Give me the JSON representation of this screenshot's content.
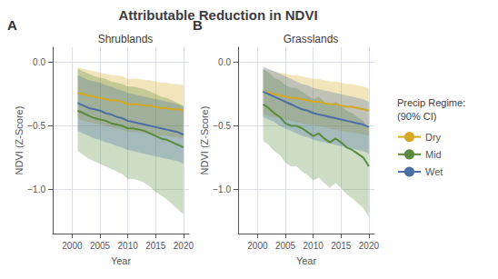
{
  "title": "Attributable Reduction in NDVI",
  "legend_title": "Precip Regime:\n(90% CI)",
  "chart_data": [
    {
      "type": "line",
      "title": "Shrublands",
      "annotations": [
        {
          "text": "A"
        }
      ],
      "xlabel": "Year",
      "ylabel": "NDVI (Z-Score)",
      "x": [
        2001,
        2002,
        2003,
        2004,
        2005,
        2006,
        2007,
        2008,
        2009,
        2010,
        2011,
        2012,
        2013,
        2014,
        2015,
        2016,
        2017,
        2018,
        2019,
        2020
      ],
      "xlim": [
        1996.5,
        2021
      ],
      "xticks": [
        2000,
        2005,
        2010,
        2015,
        2020
      ],
      "ylim": [
        -1.35,
        0.12
      ],
      "yticks": [
        {
          "value": 0.0,
          "label": "0.0"
        },
        {
          "value": -0.5,
          "label": "−0.5"
        },
        {
          "value": -1.0,
          "label": "−1.0"
        }
      ],
      "grid": true,
      "legend": "right",
      "series": [
        {
          "name": "Dry",
          "color": "#D4A820",
          "values": [
            -0.24,
            -0.25,
            -0.26,
            -0.27,
            -0.28,
            -0.29,
            -0.3,
            -0.3,
            -0.31,
            -0.33,
            -0.33,
            -0.33,
            -0.34,
            -0.34,
            -0.35,
            -0.36,
            -0.36,
            -0.37,
            -0.37,
            -0.38
          ],
          "lo": [
            -0.04,
            -0.05,
            -0.06,
            -0.07,
            -0.08,
            -0.09,
            -0.1,
            -0.1,
            -0.11,
            -0.13,
            -0.13,
            -0.13,
            -0.14,
            -0.14,
            -0.15,
            -0.16,
            -0.16,
            -0.17,
            -0.17,
            -0.18
          ],
          "hi": [
            -0.44,
            -0.46,
            -0.47,
            -0.48,
            -0.49,
            -0.5,
            -0.51,
            -0.52,
            -0.53,
            -0.55,
            -0.55,
            -0.55,
            -0.56,
            -0.56,
            -0.57,
            -0.58,
            -0.58,
            -0.59,
            -0.59,
            -0.6
          ]
        },
        {
          "name": "Mid",
          "color": "#5A8A3C",
          "values": [
            -0.38,
            -0.4,
            -0.42,
            -0.44,
            -0.45,
            -0.46,
            -0.48,
            -0.49,
            -0.5,
            -0.52,
            -0.52,
            -0.53,
            -0.54,
            -0.56,
            -0.58,
            -0.6,
            -0.61,
            -0.63,
            -0.65,
            -0.67
          ],
          "lo": [
            -0.05,
            -0.07,
            -0.09,
            -0.11,
            -0.12,
            -0.13,
            -0.15,
            -0.16,
            -0.17,
            -0.19,
            -0.19,
            -0.2,
            -0.21,
            -0.23,
            -0.25,
            -0.27,
            -0.28,
            -0.3,
            -0.32,
            -0.34
          ],
          "hi": [
            -0.7,
            -0.73,
            -0.76,
            -0.78,
            -0.8,
            -0.82,
            -0.84,
            -0.86,
            -0.88,
            -0.92,
            -0.92,
            -0.93,
            -0.95,
            -0.98,
            -1.02,
            -1.05,
            -1.08,
            -1.12,
            -1.16,
            -1.2
          ]
        },
        {
          "name": "Wet",
          "color": "#4A6FA5",
          "values": [
            -0.32,
            -0.34,
            -0.36,
            -0.37,
            -0.38,
            -0.4,
            -0.41,
            -0.43,
            -0.44,
            -0.46,
            -0.47,
            -0.48,
            -0.49,
            -0.5,
            -0.51,
            -0.52,
            -0.53,
            -0.54,
            -0.55,
            -0.57
          ],
          "lo": [
            -0.1,
            -0.12,
            -0.14,
            -0.15,
            -0.16,
            -0.18,
            -0.19,
            -0.21,
            -0.22,
            -0.24,
            -0.25,
            -0.26,
            -0.27,
            -0.28,
            -0.29,
            -0.3,
            -0.31,
            -0.32,
            -0.33,
            -0.35
          ],
          "hi": [
            -0.54,
            -0.56,
            -0.58,
            -0.6,
            -0.61,
            -0.63,
            -0.64,
            -0.66,
            -0.67,
            -0.69,
            -0.7,
            -0.71,
            -0.72,
            -0.73,
            -0.74,
            -0.75,
            -0.76,
            -0.77,
            -0.78,
            -0.8
          ]
        }
      ]
    },
    {
      "type": "line",
      "title": "Grasslands",
      "annotations": [
        {
          "text": "B"
        }
      ],
      "xlabel": "Year",
      "ylabel": "NDVI (Z-Score)",
      "x": [
        2001,
        2002,
        2003,
        2004,
        2005,
        2006,
        2007,
        2008,
        2009,
        2010,
        2011,
        2012,
        2013,
        2014,
        2015,
        2016,
        2017,
        2018,
        2019,
        2020
      ],
      "xlim": [
        1996.5,
        2021
      ],
      "xticks": [
        2000,
        2005,
        2010,
        2015,
        2020
      ],
      "ylim": [
        -1.35,
        0.12
      ],
      "yticks": [
        {
          "value": 0.0,
          "label": "0.0"
        },
        {
          "value": -0.5,
          "label": "−0.5"
        },
        {
          "value": -1.0,
          "label": "−1.0"
        }
      ],
      "grid": true,
      "legend": "right",
      "series": [
        {
          "name": "Dry",
          "color": "#D4A820",
          "values": [
            -0.23,
            -0.24,
            -0.25,
            -0.26,
            -0.27,
            -0.28,
            -0.28,
            -0.29,
            -0.3,
            -0.31,
            -0.31,
            -0.32,
            -0.33,
            -0.33,
            -0.34,
            -0.35,
            -0.35,
            -0.36,
            -0.37,
            -0.38
          ],
          "lo": [
            -0.05,
            -0.06,
            -0.07,
            -0.08,
            -0.09,
            -0.1,
            -0.1,
            -0.11,
            -0.12,
            -0.13,
            -0.13,
            -0.14,
            -0.15,
            -0.15,
            -0.16,
            -0.17,
            -0.17,
            -0.18,
            -0.19,
            -0.2
          ],
          "hi": [
            -0.41,
            -0.42,
            -0.43,
            -0.44,
            -0.45,
            -0.46,
            -0.47,
            -0.48,
            -0.49,
            -0.5,
            -0.5,
            -0.51,
            -0.52,
            -0.53,
            -0.54,
            -0.55,
            -0.55,
            -0.56,
            -0.57,
            -0.58
          ]
        },
        {
          "name": "Mid",
          "color": "#5A8A3C",
          "values": [
            -0.33,
            -0.36,
            -0.4,
            -0.43,
            -0.48,
            -0.5,
            -0.5,
            -0.52,
            -0.55,
            -0.58,
            -0.56,
            -0.6,
            -0.63,
            -0.6,
            -0.63,
            -0.67,
            -0.69,
            -0.72,
            -0.75,
            -0.82
          ],
          "lo": [
            -0.05,
            -0.08,
            -0.12,
            -0.14,
            -0.18,
            -0.2,
            -0.2,
            -0.23,
            -0.26,
            -0.29,
            -0.27,
            -0.31,
            -0.34,
            -0.31,
            -0.34,
            -0.38,
            -0.4,
            -0.43,
            -0.46,
            -0.53
          ],
          "hi": [
            -0.62,
            -0.65,
            -0.7,
            -0.73,
            -0.79,
            -0.82,
            -0.82,
            -0.86,
            -0.89,
            -0.93,
            -0.91,
            -0.95,
            -0.99,
            -0.95,
            -0.99,
            -1.04,
            -1.07,
            -1.11,
            -1.15,
            -1.22
          ]
        },
        {
          "name": "Wet",
          "color": "#4A6FA5",
          "values": [
            -0.23,
            -0.25,
            -0.27,
            -0.29,
            -0.31,
            -0.33,
            -0.35,
            -0.37,
            -0.38,
            -0.4,
            -0.41,
            -0.42,
            -0.43,
            -0.44,
            -0.45,
            -0.46,
            -0.47,
            -0.48,
            -0.49,
            -0.51
          ],
          "lo": [
            -0.03,
            -0.05,
            -0.07,
            -0.09,
            -0.11,
            -0.13,
            -0.15,
            -0.17,
            -0.18,
            -0.2,
            -0.21,
            -0.22,
            -0.23,
            -0.24,
            -0.25,
            -0.26,
            -0.27,
            -0.28,
            -0.29,
            -0.31
          ],
          "hi": [
            -0.43,
            -0.45,
            -0.47,
            -0.5,
            -0.52,
            -0.54,
            -0.56,
            -0.58,
            -0.59,
            -0.61,
            -0.62,
            -0.63,
            -0.64,
            -0.65,
            -0.66,
            -0.67,
            -0.68,
            -0.69,
            -0.7,
            -0.72
          ]
        }
      ]
    }
  ]
}
